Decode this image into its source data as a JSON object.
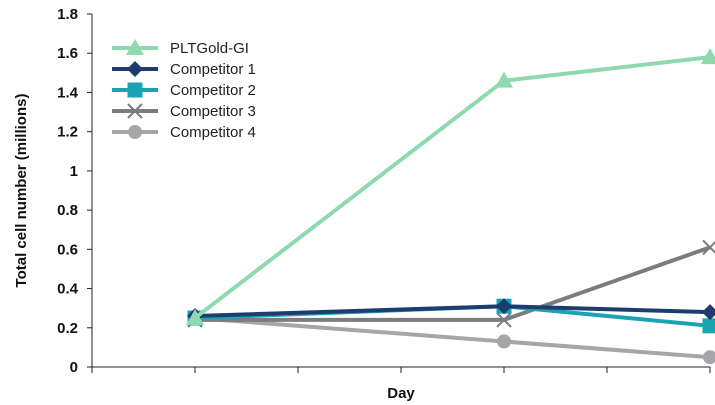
{
  "chart_data": {
    "type": "line",
    "title": "",
    "xlabel": "Day",
    "ylabel": "Total cell number (millions)",
    "ylim": [
      0,
      1.8
    ],
    "yticks": [
      0,
      0.2,
      0.4,
      0.6,
      0.8,
      1,
      1.2,
      1.4,
      1.6,
      1.8
    ],
    "ytick_labels": [
      "0",
      "0.2",
      "0.4",
      "0.6",
      "0.8",
      "1",
      "1.2",
      "1.4",
      "1.6",
      "1.8"
    ],
    "x": [
      1,
      4,
      6
    ],
    "xlim": [
      0,
      6
    ],
    "xtick_count": 7,
    "grid": false,
    "legend_position": "top-left",
    "series": [
      {
        "name": "PLTGold-GI",
        "values": [
          0.25,
          1.46,
          1.58
        ],
        "color": "#8fd9b0",
        "marker": "triangle"
      },
      {
        "name": "Competitor 1",
        "values": [
          0.26,
          0.31,
          0.28
        ],
        "color": "#1c3d6e",
        "marker": "diamond"
      },
      {
        "name": "Competitor 2",
        "values": [
          0.25,
          0.31,
          0.21
        ],
        "color": "#1aa3b0",
        "marker": "square"
      },
      {
        "name": "Competitor 3",
        "values": [
          0.24,
          0.24,
          0.61
        ],
        "color": "#7b7b80",
        "marker": "x"
      },
      {
        "name": "Competitor 4",
        "values": [
          0.25,
          0.13,
          0.05
        ],
        "color": "#a5a5aa",
        "marker": "circle"
      }
    ]
  }
}
